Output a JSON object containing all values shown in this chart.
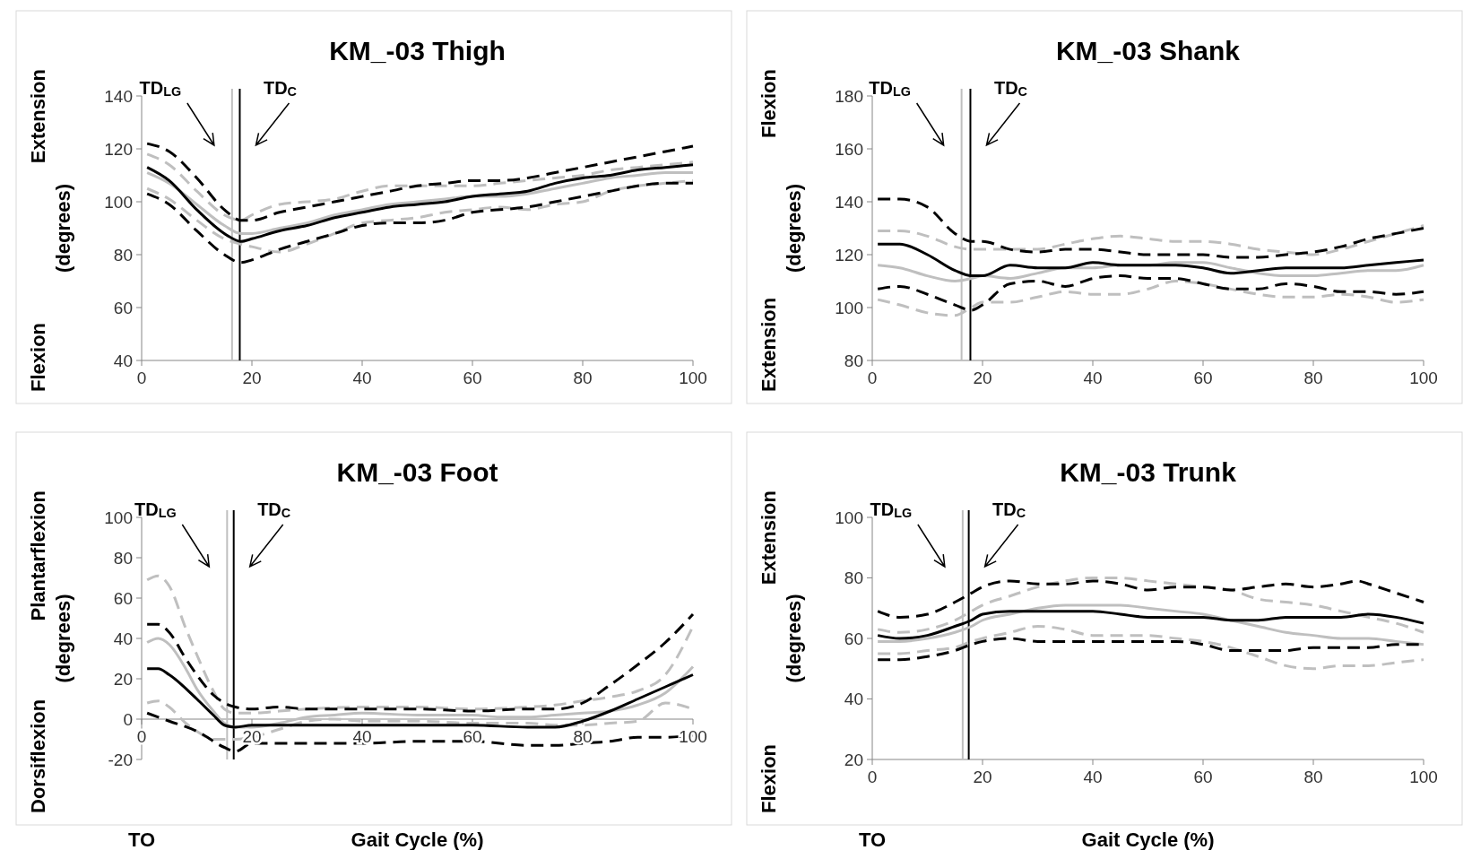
{
  "chart_data": [
    {
      "type": "line",
      "title": "KM_-03 Thigh",
      "ylabel": "Flexion Extension\n(degrees)",
      "xlim": [
        0,
        100
      ],
      "xticks": [
        0,
        20,
        40,
        60,
        80,
        100
      ],
      "ylim": [
        40,
        140
      ],
      "yticks": [
        40,
        60,
        80,
        100,
        120,
        140
      ],
      "ref_lines": [
        {
          "axis": "x",
          "value": 16.4,
          "label": "TD$_{LG}$",
          "color": "#bfbfbf"
        },
        {
          "axis": "x",
          "value": 17.8,
          "label": "TD$_{C}$",
          "color": "#000000"
        }
      ],
      "series": [
        {
          "color": "#bfbfbf",
          "line_style": "dashed",
          "x": [
            1,
            5,
            10,
            15,
            18,
            20,
            25,
            30,
            35,
            40,
            45,
            50,
            55,
            60,
            65,
            70,
            75,
            80,
            85,
            90,
            95,
            100
          ],
          "values": [
            118,
            114,
            104,
            95,
            93,
            95,
            99,
            100,
            101,
            104,
            106,
            106,
            106,
            106,
            107,
            108,
            109,
            110,
            112,
            113,
            114,
            115
          ]
        },
        {
          "color": "#bfbfbf",
          "line_style": "dashed",
          "x": [
            1,
            5,
            10,
            15,
            18,
            20,
            25,
            30,
            35,
            40,
            45,
            50,
            55,
            60,
            65,
            70,
            75,
            80,
            85,
            90,
            95,
            100
          ],
          "values": [
            105,
            101,
            93,
            86,
            84,
            83,
            81,
            84,
            88,
            92,
            93,
            94,
            96,
            97,
            98,
            97,
            99,
            100,
            104,
            106,
            107,
            108
          ]
        },
        {
          "color": "#bfbfbf",
          "line_style": "solid",
          "x": [
            1,
            5,
            10,
            15,
            18,
            20,
            25,
            30,
            35,
            40,
            45,
            50,
            55,
            60,
            65,
            70,
            75,
            80,
            85,
            90,
            95,
            100
          ],
          "values": [
            111,
            107,
            99,
            91,
            88,
            88,
            90,
            92,
            95,
            97,
            99,
            100,
            101,
            102,
            102,
            103,
            105,
            107,
            109,
            110,
            111,
            111
          ]
        },
        {
          "color": "#000000",
          "line_style": "dashed",
          "x": [
            1,
            5,
            10,
            15,
            18,
            20,
            25,
            30,
            35,
            40,
            45,
            50,
            55,
            60,
            65,
            70,
            75,
            80,
            85,
            90,
            95,
            100
          ],
          "values": [
            122,
            119,
            109,
            97,
            93,
            93,
            96,
            98,
            100,
            102,
            104,
            106,
            107,
            108,
            108,
            109,
            111,
            113,
            115,
            117,
            119,
            121
          ]
        },
        {
          "color": "#000000",
          "line_style": "dashed",
          "x": [
            1,
            5,
            10,
            15,
            18,
            20,
            25,
            30,
            35,
            40,
            45,
            50,
            55,
            60,
            65,
            70,
            75,
            80,
            85,
            90,
            95,
            100
          ],
          "values": [
            103,
            99,
            89,
            80,
            77,
            78,
            82,
            85,
            88,
            91,
            92,
            92,
            93,
            96,
            97,
            98,
            100,
            102,
            104,
            106,
            107,
            107
          ]
        },
        {
          "color": "#000000",
          "line_style": "solid",
          "x": [
            1,
            5,
            10,
            15,
            18,
            20,
            25,
            30,
            35,
            40,
            45,
            50,
            55,
            60,
            65,
            70,
            75,
            80,
            85,
            90,
            95,
            100
          ],
          "values": [
            113,
            108,
            97,
            88,
            85,
            86,
            89,
            91,
            94,
            96,
            98,
            99,
            100,
            102,
            103,
            104,
            107,
            109,
            110,
            112,
            113,
            114
          ]
        }
      ]
    },
    {
      "type": "line",
      "title": "KM_-03 Shank",
      "ylabel": "Extension Flexion\n(degrees)",
      "xlim": [
        0,
        100
      ],
      "xticks": [
        0,
        20,
        40,
        60,
        80,
        100
      ],
      "ylim": [
        80,
        180
      ],
      "yticks": [
        80,
        100,
        120,
        140,
        160,
        180
      ],
      "ref_lines": [
        {
          "axis": "x",
          "value": 16.2,
          "label": "TD$_{LG}$",
          "color": "#bfbfbf"
        },
        {
          "axis": "x",
          "value": 17.8,
          "label": "TD$_{C}$",
          "color": "#000000"
        }
      ],
      "series": [
        {
          "color": "#bfbfbf",
          "line_style": "dashed",
          "x": [
            1,
            5,
            10,
            15,
            18,
            20,
            25,
            30,
            35,
            40,
            45,
            50,
            55,
            60,
            65,
            70,
            75,
            80,
            85,
            90,
            95,
            100
          ],
          "values": [
            129,
            129,
            127,
            123,
            122,
            122,
            122,
            122,
            124,
            126,
            127,
            126,
            125,
            125,
            124,
            122,
            121,
            120,
            122,
            125,
            128,
            131
          ]
        },
        {
          "color": "#bfbfbf",
          "line_style": "dashed",
          "x": [
            1,
            5,
            10,
            15,
            18,
            20,
            25,
            30,
            35,
            40,
            45,
            50,
            55,
            60,
            65,
            70,
            75,
            80,
            85,
            90,
            95,
            100
          ],
          "values": [
            103,
            101,
            98,
            97,
            100,
            102,
            102,
            104,
            106,
            105,
            105,
            107,
            110,
            109,
            107,
            105,
            104,
            104,
            105,
            104,
            102,
            103
          ]
        },
        {
          "color": "#bfbfbf",
          "line_style": "solid",
          "x": [
            1,
            5,
            10,
            15,
            18,
            20,
            25,
            30,
            35,
            40,
            45,
            50,
            55,
            60,
            65,
            70,
            75,
            80,
            85,
            90,
            95,
            100
          ],
          "values": [
            116,
            115,
            112,
            110,
            111,
            112,
            111,
            113,
            115,
            115,
            116,
            116,
            117,
            117,
            115,
            113,
            112,
            112,
            113,
            114,
            114,
            116
          ]
        },
        {
          "color": "#000000",
          "line_style": "dashed",
          "x": [
            1,
            5,
            10,
            15,
            18,
            20,
            25,
            30,
            35,
            40,
            45,
            50,
            55,
            60,
            65,
            70,
            75,
            80,
            85,
            90,
            95,
            100
          ],
          "values": [
            141,
            141,
            138,
            128,
            125,
            125,
            122,
            121,
            122,
            122,
            121,
            120,
            120,
            120,
            119,
            119,
            120,
            121,
            123,
            126,
            128,
            130
          ]
        },
        {
          "color": "#000000",
          "line_style": "dashed",
          "x": [
            1,
            5,
            10,
            15,
            18,
            20,
            25,
            30,
            35,
            40,
            45,
            50,
            55,
            60,
            65,
            70,
            75,
            80,
            85,
            90,
            95,
            100
          ],
          "values": [
            107,
            108,
            105,
            101,
            99,
            101,
            109,
            110,
            108,
            111,
            112,
            111,
            111,
            109,
            107,
            107,
            109,
            108,
            106,
            106,
            105,
            106
          ]
        },
        {
          "color": "#000000",
          "line_style": "solid",
          "x": [
            1,
            5,
            10,
            15,
            18,
            20,
            25,
            30,
            35,
            40,
            45,
            50,
            55,
            60,
            65,
            70,
            75,
            80,
            85,
            90,
            95,
            100
          ],
          "values": [
            124,
            124,
            120,
            114,
            112,
            112,
            116,
            115,
            115,
            117,
            116,
            116,
            116,
            115,
            113,
            114,
            115,
            115,
            115,
            116,
            117,
            118
          ]
        }
      ]
    },
    {
      "type": "line",
      "title": "KM_-03 Foot",
      "ylabel": "Dorsiflexion Plantarflexion\n(degrees)",
      "xlabel": "Gait Cycle (%)",
      "annotations": [
        "TO"
      ],
      "xlim": [
        0,
        100
      ],
      "xticks": [
        0,
        20,
        40,
        60,
        80,
        100
      ],
      "ylim": [
        -20,
        100
      ],
      "yticks": [
        -20,
        0,
        20,
        40,
        60,
        80,
        100
      ],
      "ref_lines": [
        {
          "axis": "x",
          "value": 15.5,
          "label": "TD$_{LG}$",
          "color": "#bfbfbf"
        },
        {
          "axis": "x",
          "value": 16.7,
          "label": "TD$_{C}$",
          "color": "#000000"
        }
      ],
      "series": [
        {
          "color": "#bfbfbf",
          "line_style": "dashed",
          "x": [
            1,
            3,
            5,
            8,
            10,
            13,
            15,
            17,
            20,
            25,
            30,
            40,
            50,
            60,
            70,
            75,
            80,
            85,
            90,
            95,
            100
          ],
          "values": [
            69,
            71,
            66,
            45,
            32,
            14,
            5,
            3,
            3,
            4,
            5,
            6,
            6,
            5,
            6,
            7,
            9,
            11,
            14,
            22,
            46
          ]
        },
        {
          "color": "#bfbfbf",
          "line_style": "dashed",
          "x": [
            1,
            3,
            5,
            8,
            10,
            13,
            15,
            17,
            20,
            25,
            30,
            35,
            40,
            50,
            60,
            70,
            75,
            80,
            85,
            90,
            95,
            100
          ],
          "values": [
            8,
            9,
            6,
            -2,
            -6,
            -10,
            -10,
            -10,
            -9,
            -5,
            -1,
            0,
            -1,
            -1,
            -2,
            -2,
            -3,
            -3,
            -2,
            -1,
            8,
            5
          ]
        },
        {
          "color": "#bfbfbf",
          "line_style": "solid",
          "x": [
            1,
            3,
            5,
            8,
            10,
            13,
            15,
            17,
            20,
            25,
            30,
            35,
            40,
            50,
            60,
            65,
            70,
            75,
            80,
            85,
            90,
            95,
            100
          ],
          "values": [
            38,
            40,
            37,
            25,
            15,
            4,
            -2,
            -4,
            -4,
            -2,
            1,
            2,
            3,
            2,
            2,
            1,
            1,
            2,
            3,
            4,
            7,
            13,
            26
          ]
        },
        {
          "color": "#000000",
          "line_style": "dashed",
          "x": [
            1,
            3,
            5,
            8,
            10,
            13,
            15,
            17,
            20,
            25,
            30,
            40,
            50,
            60,
            70,
            75,
            80,
            85,
            90,
            95,
            100
          ],
          "values": [
            47,
            47,
            43,
            30,
            22,
            12,
            8,
            6,
            5,
            6,
            5,
            5,
            5,
            4,
            5,
            5,
            8,
            17,
            27,
            38,
            52
          ]
        },
        {
          "color": "#000000",
          "line_style": "dashed",
          "x": [
            1,
            5,
            10,
            15,
            17,
            20,
            25,
            30,
            40,
            50,
            60,
            70,
            75,
            80,
            85,
            90,
            95,
            100
          ],
          "values": [
            3,
            -1,
            -6,
            -14,
            -16,
            -12,
            -12,
            -12,
            -12,
            -11,
            -11,
            -13,
            -13,
            -12,
            -11,
            -9,
            -9,
            -8
          ]
        },
        {
          "color": "#000000",
          "line_style": "solid",
          "x": [
            1,
            3,
            5,
            10,
            13,
            15,
            17,
            20,
            25,
            30,
            40,
            50,
            60,
            70,
            75,
            80,
            85,
            90,
            95,
            100
          ],
          "values": [
            25,
            25,
            22,
            10,
            2,
            -3,
            -4,
            -3,
            -3,
            -3,
            -3,
            -3,
            -3,
            -4,
            -4,
            -1,
            4,
            10,
            16,
            22
          ]
        }
      ]
    },
    {
      "type": "line",
      "title": "KM_-03 Trunk",
      "ylabel": "Flexion Extension\n(degrees)",
      "xlabel": "Gait Cycle (%)",
      "annotations": [
        "TO"
      ],
      "xlim": [
        0,
        100
      ],
      "xticks": [
        0,
        20,
        40,
        60,
        80,
        100
      ],
      "ylim": [
        20,
        100
      ],
      "yticks": [
        20,
        40,
        60,
        80,
        100
      ],
      "ref_lines": [
        {
          "axis": "x",
          "value": 16.4,
          "label": "TD$_{LG}$",
          "color": "#bfbfbf"
        },
        {
          "axis": "x",
          "value": 17.5,
          "label": "TD$_{C}$",
          "color": "#000000"
        }
      ],
      "series": [
        {
          "color": "#bfbfbf",
          "line_style": "dashed",
          "x": [
            1,
            5,
            10,
            15,
            18,
            20,
            25,
            30,
            35,
            40,
            45,
            50,
            55,
            60,
            65,
            70,
            75,
            80,
            85,
            90,
            95,
            100
          ],
          "values": [
            63,
            62,
            63,
            66,
            69,
            71,
            74,
            77,
            79,
            80,
            80,
            79,
            78,
            77,
            76,
            73,
            72,
            71,
            69,
            67,
            65,
            62
          ]
        },
        {
          "color": "#bfbfbf",
          "line_style": "dashed",
          "x": [
            1,
            5,
            10,
            15,
            18,
            20,
            25,
            30,
            35,
            40,
            45,
            50,
            55,
            60,
            65,
            70,
            75,
            80,
            85,
            90,
            95,
            100
          ],
          "values": [
            55,
            55,
            56,
            57,
            59,
            60,
            62,
            64,
            63,
            61,
            61,
            61,
            60,
            59,
            57,
            54,
            51,
            50,
            51,
            51,
            52,
            53
          ]
        },
        {
          "color": "#bfbfbf",
          "line_style": "solid",
          "x": [
            1,
            5,
            10,
            15,
            18,
            20,
            25,
            30,
            35,
            40,
            45,
            50,
            55,
            60,
            65,
            70,
            75,
            80,
            85,
            90,
            95,
            100
          ],
          "values": [
            59,
            59,
            60,
            62,
            64,
            66,
            68,
            70,
            71,
            71,
            71,
            70,
            69,
            68,
            66,
            64,
            62,
            61,
            60,
            60,
            59,
            58
          ]
        },
        {
          "color": "#000000",
          "line_style": "dashed",
          "x": [
            1,
            5,
            10,
            15,
            18,
            20,
            25,
            30,
            35,
            40,
            45,
            50,
            55,
            60,
            65,
            70,
            75,
            80,
            85,
            88,
            90,
            95,
            100
          ],
          "values": [
            69,
            67,
            68,
            72,
            75,
            77,
            79,
            78,
            78,
            79,
            78,
            76,
            77,
            77,
            76,
            77,
            78,
            77,
            78,
            79,
            78,
            75,
            72
          ]
        },
        {
          "color": "#000000",
          "line_style": "dashed",
          "x": [
            1,
            5,
            10,
            15,
            18,
            20,
            25,
            30,
            35,
            40,
            45,
            50,
            55,
            60,
            65,
            70,
            75,
            80,
            85,
            90,
            95,
            100
          ],
          "values": [
            53,
            53,
            54,
            56,
            58,
            59,
            60,
            59,
            59,
            59,
            59,
            59,
            59,
            58,
            56,
            56,
            56,
            57,
            57,
            57,
            58,
            58
          ]
        },
        {
          "color": "#000000",
          "line_style": "solid",
          "x": [
            1,
            5,
            10,
            15,
            18,
            20,
            25,
            30,
            35,
            40,
            45,
            50,
            55,
            60,
            65,
            70,
            75,
            80,
            85,
            90,
            95,
            100
          ],
          "values": [
            61,
            60,
            61,
            64,
            66,
            68,
            69,
            69,
            69,
            69,
            68,
            67,
            67,
            67,
            66,
            66,
            67,
            67,
            67,
            68,
            67,
            65
          ]
        }
      ]
    }
  ]
}
